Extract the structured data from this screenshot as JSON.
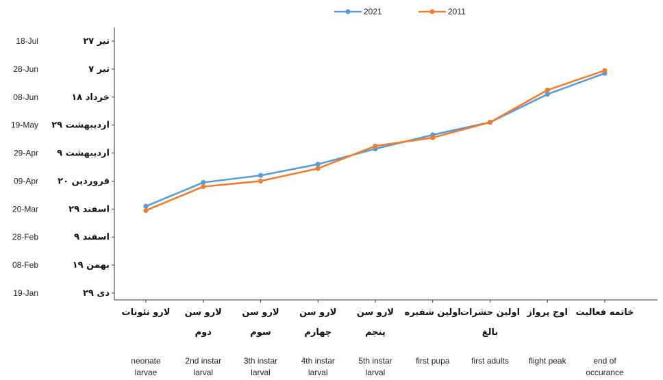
{
  "chart_data": {
    "type": "line",
    "title": "",
    "xlabel": "",
    "ylabel": "",
    "categories": [
      {
        "fa": [
          "لارو نئونات"
        ],
        "en": [
          "neonate",
          "larvae"
        ]
      },
      {
        "fa": [
          "لارو سن",
          "دوم"
        ],
        "en": [
          "2nd instar",
          "larval"
        ]
      },
      {
        "fa": [
          "لارو سن",
          "سوم"
        ],
        "en": [
          "3th instar",
          "larval"
        ]
      },
      {
        "fa": [
          "لارو سن",
          "چهارم"
        ],
        "en": [
          "4th instar",
          "larval"
        ]
      },
      {
        "fa": [
          "لارو سن",
          "پنجم"
        ],
        "en": [
          "5th instar",
          "larval"
        ]
      },
      {
        "fa": [
          "اولین شفیره"
        ],
        "en": [
          "first pupa"
        ]
      },
      {
        "fa": [
          "اولین حشرات",
          "بالغ"
        ],
        "en": [
          "first adults"
        ]
      },
      {
        "fa": [
          "اوج پرواز"
        ],
        "en": [
          "flight peak"
        ]
      },
      {
        "fa": [
          "خاتمه فعالیت"
        ],
        "en": [
          "end of",
          "occurance"
        ]
      }
    ],
    "y_ticks": [
      {
        "en": "19-Jan",
        "fa": "۲۹ دی"
      },
      {
        "en": "08-Feb",
        "fa": "۱۹ بهمن"
      },
      {
        "en": "28-Feb",
        "fa": "۹ اسفند"
      },
      {
        "en": "20-Mar",
        "fa": "۲۹ اسفند"
      },
      {
        "en": "09-Apr",
        "fa": "۲۰ فروردین"
      },
      {
        "en": "29-Apr",
        "fa": "۹ اردیبهشت"
      },
      {
        "en": "19-May",
        "fa": "۲۹ اردیبهشت"
      },
      {
        "en": "08-Jun",
        "fa": "۱۸ خرداد"
      },
      {
        "en": "28-Jun",
        "fa": "۷ تیر"
      },
      {
        "en": "18-Jul",
        "fa": "۲۷ تیر"
      }
    ],
    "ylim": [
      "19-Jan",
      "18-Jul"
    ],
    "grid": false,
    "legend_position": "top",
    "series": [
      {
        "name": "2021",
        "color": "#5b9bd5",
        "values": [
          "22-Mar",
          "08-Apr",
          "13-Apr",
          "21-Apr",
          "02-May",
          "12-May",
          "21-May",
          "10-Jun",
          "25-Jun"
        ]
      },
      {
        "name": "2011",
        "color": "#ed7d31",
        "values": [
          "19-Mar",
          "05-Apr",
          "09-Apr",
          "18-Apr",
          "04-May",
          "10-May",
          "21-May",
          "13-Jun",
          "27-Jun"
        ]
      }
    ]
  }
}
